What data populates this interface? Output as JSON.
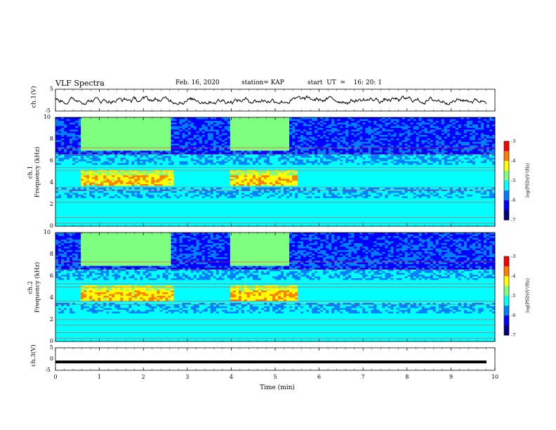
{
  "header": {
    "title": "VLF Spectra",
    "date": "Feb. 16, 2020",
    "station": "station= KAP",
    "start": "start  UT  =    16: 20: 1"
  },
  "colors": {
    "trace": "#000000",
    "colormap": [
      "#00007f",
      "#0000ff",
      "#007fff",
      "#00ffff",
      "#7fff7f",
      "#ffff00",
      "#ff7f00",
      "#ff0000",
      "#7f0000"
    ]
  },
  "chart_data": [
    {
      "type": "line",
      "panel": "ch1-waveform",
      "ylabel": "ch.1(V)",
      "ylim": [
        -5,
        5
      ],
      "yticks": [
        "5",
        "-5"
      ],
      "description_series": "noisy waveform around 0 V",
      "y_envelope": [
        -2,
        2
      ]
    },
    {
      "type": "heatmap",
      "panel": "ch1-spectrogram",
      "ylabel": "ch.1\nFrequency (kHz)",
      "ylim": [
        0,
        10
      ],
      "yticks": [
        "10",
        "8",
        "6",
        "4",
        "2",
        "0"
      ],
      "xlim": [
        0,
        10
      ],
      "xunit": "min",
      "colorbar": {
        "label": "log(PSD)(V²/Hz)",
        "range": [
          -7,
          -3
        ],
        "ticks": [
          "-3",
          "-4",
          "-5",
          "-6",
          "-7"
        ]
      },
      "features": {
        "emission_band_khz": [
          3.5,
          5.5
        ],
        "emission_intervals_min": [
          [
            0.6,
            2.7
          ],
          [
            4.0,
            5.5
          ]
        ],
        "hiss_band_khz": [
          7,
          10
        ],
        "hiss_intervals_min": [
          [
            0.6,
            2.6
          ],
          [
            4.0,
            5.3
          ]
        ],
        "line_interference_khz": [
          0.3,
          0.8,
          2.2,
          3.3,
          3.6,
          5.1,
          5.4,
          6.6,
          7.2
        ]
      }
    },
    {
      "type": "heatmap",
      "panel": "ch2-spectrogram",
      "ylabel": "ch.2\nFrequency (kHz)",
      "ylim": [
        0,
        10
      ],
      "yticks": [
        "10",
        "8",
        "6",
        "4",
        "2",
        "0"
      ],
      "xlim": [
        0,
        10
      ],
      "xunit": "min",
      "colorbar": {
        "label": "log(PSD)(V²/Hz)",
        "range": [
          -7,
          -3
        ],
        "ticks": [
          "-3",
          "-4",
          "-5",
          "-6",
          "-7"
        ]
      },
      "features": {
        "emission_band_khz": [
          3.5,
          5.5
        ],
        "emission_intervals_min": [
          [
            0.6,
            2.7
          ],
          [
            4.0,
            5.5
          ]
        ],
        "hiss_band_khz": [
          7,
          10
        ],
        "hiss_intervals_min": [
          [
            0.6,
            2.6
          ],
          [
            4.0,
            5.3
          ]
        ],
        "line_interference_khz": [
          0.3,
          0.8,
          1.5,
          2.0,
          3.4,
          3.7,
          5.0,
          5.3,
          6.6,
          7.3
        ]
      }
    },
    {
      "type": "line",
      "panel": "ch3-waveform",
      "ylabel": "ch.3(V)",
      "ylim": [
        -5,
        5
      ],
      "yticks": [
        "5",
        "0",
        "-5"
      ],
      "value_constant": -1.3
    }
  ],
  "xaxis": {
    "label": "Time  (min)",
    "ticks": [
      "0",
      "1",
      "2",
      "3",
      "4",
      "5",
      "6",
      "7",
      "8",
      "9",
      "10"
    ]
  }
}
